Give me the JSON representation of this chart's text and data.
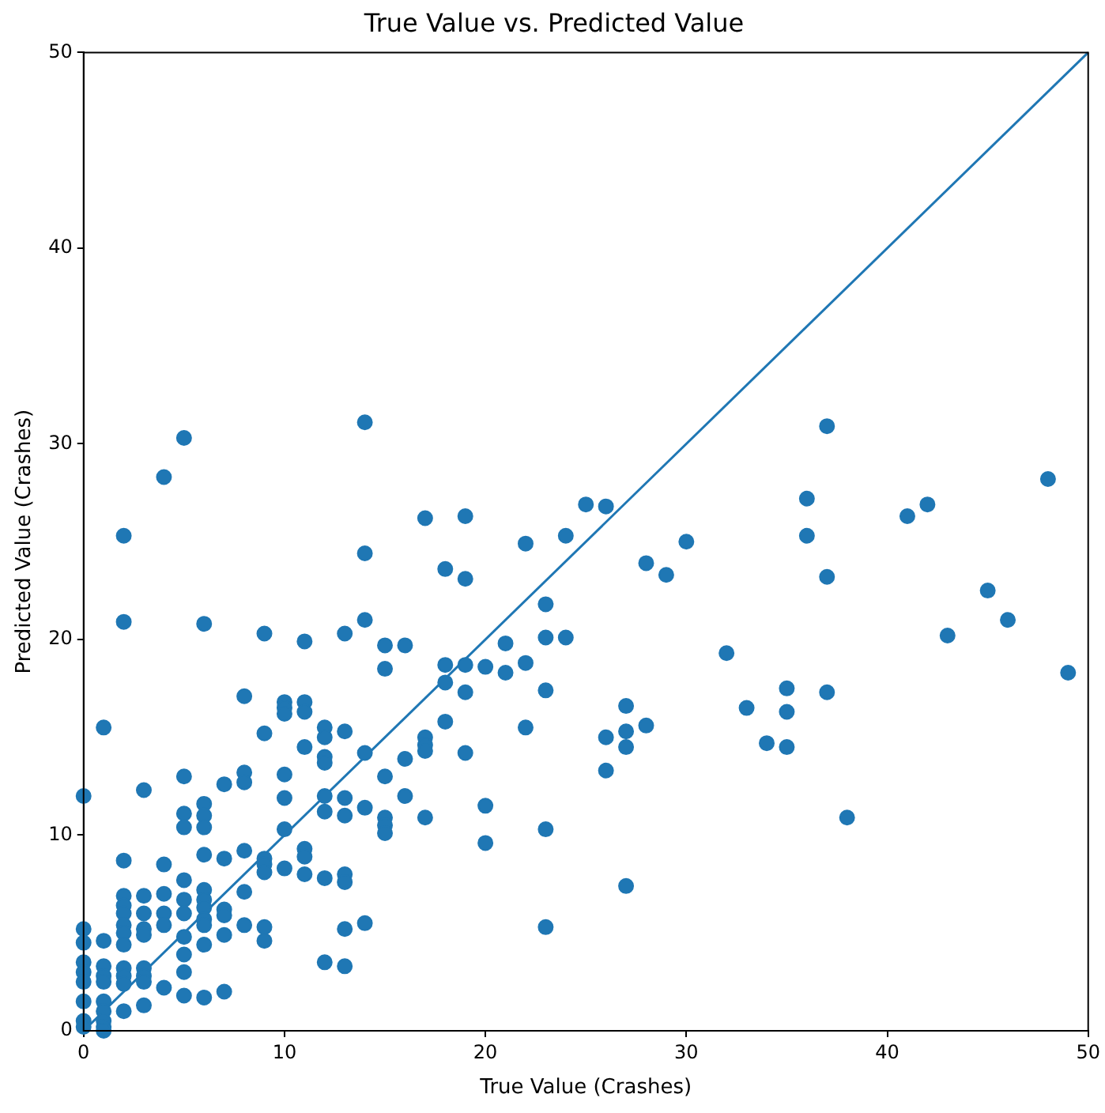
{
  "chart_data": {
    "type": "scatter",
    "title": "True Value vs. Predicted Value",
    "xlabel": "True Value (Crashes)",
    "ylabel": "Predicted Value (Crashes)",
    "xlim": [
      0,
      50
    ],
    "ylim": [
      0,
      50
    ],
    "xticks": [
      0,
      10,
      20,
      30,
      40,
      50
    ],
    "yticks": [
      0,
      10,
      20,
      30,
      40,
      50
    ],
    "grid": false,
    "legend": false,
    "marker": "circle",
    "series": [
      {
        "color": "#1f77b4",
        "x": [
          0,
          0,
          0,
          0,
          0,
          0,
          0,
          0,
          0,
          1,
          1,
          1,
          1,
          1,
          1,
          1,
          1,
          1,
          1,
          2,
          2,
          2,
          2,
          2,
          2,
          2,
          2,
          2,
          2,
          2,
          2,
          2,
          3,
          3,
          3,
          3,
          3,
          3,
          3,
          3,
          3,
          4,
          4,
          4,
          4,
          4,
          4,
          5,
          5,
          5,
          5,
          5,
          5,
          5,
          5,
          5,
          5,
          5,
          6,
          6,
          6,
          6,
          6,
          6,
          6,
          6,
          6,
          6,
          6,
          6,
          7,
          7,
          7,
          7,
          7,
          7,
          8,
          8,
          8,
          8,
          8,
          8,
          9,
          9,
          9,
          9,
          9,
          9,
          9,
          10,
          10,
          10,
          10,
          10,
          10,
          10,
          11,
          11,
          11,
          11,
          11,
          11,
          11,
          12,
          12,
          12,
          12,
          12,
          12,
          12,
          12,
          13,
          13,
          13,
          13,
          13,
          13,
          13,
          13,
          14,
          14,
          14,
          14,
          14,
          14,
          15,
          15,
          15,
          15,
          15,
          15,
          16,
          16,
          16,
          17,
          17,
          17,
          17,
          17,
          18,
          18,
          18,
          18,
          19,
          19,
          19,
          19,
          19,
          20,
          20,
          20,
          21,
          21,
          22,
          22,
          22,
          23,
          23,
          23,
          23,
          23,
          24,
          24,
          25,
          26,
          26,
          26,
          27,
          27,
          27,
          27,
          28,
          28,
          29,
          30,
          32,
          33,
          34,
          35,
          35,
          35,
          36,
          36,
          37,
          37,
          37,
          38,
          41,
          42,
          43,
          45,
          46,
          48,
          49
        ],
        "values": [
          12.0,
          5.2,
          4.5,
          3.5,
          3.0,
          2.5,
          1.5,
          0.5,
          0.2,
          15.5,
          4.6,
          3.3,
          2.8,
          2.5,
          1.5,
          1.0,
          0.5,
          0.2,
          0.0,
          25.3,
          20.9,
          8.7,
          6.9,
          6.4,
          6.0,
          5.4,
          5.0,
          4.4,
          3.2,
          2.8,
          2.4,
          1.0,
          12.3,
          6.9,
          6.0,
          5.2,
          4.9,
          3.2,
          2.8,
          2.5,
          1.3,
          28.3,
          8.5,
          7.0,
          6.0,
          5.4,
          2.2,
          30.3,
          13.0,
          11.1,
          10.4,
          7.7,
          6.7,
          6.0,
          4.8,
          3.9,
          3.0,
          1.8,
          20.8,
          11.6,
          11.0,
          10.4,
          9.0,
          7.2,
          6.7,
          6.3,
          5.7,
          5.4,
          4.4,
          1.7,
          12.6,
          8.8,
          6.2,
          5.9,
          4.9,
          2.0,
          17.1,
          13.2,
          12.7,
          9.2,
          7.1,
          5.4,
          20.3,
          15.2,
          8.8,
          8.5,
          8.1,
          5.3,
          4.6,
          16.8,
          16.5,
          16.2,
          13.1,
          11.9,
          10.3,
          8.3,
          19.9,
          16.8,
          16.3,
          14.5,
          9.3,
          8.9,
          8.0,
          15.5,
          15.0,
          14.0,
          13.7,
          12.0,
          11.2,
          7.8,
          3.5,
          20.3,
          15.3,
          11.9,
          11.0,
          8.0,
          7.6,
          5.2,
          3.3,
          31.1,
          24.4,
          21.0,
          14.2,
          11.4,
          5.5,
          19.7,
          18.5,
          13.0,
          10.9,
          10.5,
          10.1,
          19.7,
          13.9,
          12.0,
          26.2,
          15.0,
          14.6,
          14.3,
          10.9,
          23.6,
          18.7,
          17.8,
          15.8,
          26.3,
          23.1,
          18.7,
          17.3,
          14.2,
          18.6,
          11.5,
          9.6,
          19.8,
          18.3,
          24.9,
          18.8,
          15.5,
          21.8,
          20.1,
          17.4,
          10.3,
          5.3,
          25.3,
          20.1,
          26.9,
          26.8,
          15.0,
          13.3,
          16.6,
          15.3,
          14.5,
          7.4,
          23.9,
          15.6,
          23.3,
          25.0,
          19.3,
          16.5,
          14.7,
          17.5,
          16.3,
          14.5,
          27.2,
          25.3,
          30.9,
          23.2,
          17.3,
          10.9,
          26.3,
          26.9,
          20.2,
          22.5,
          21.0,
          28.2,
          18.3
        ]
      },
      {
        "type": "line",
        "color": "#1f77b4",
        "marker": "none",
        "line_style": "solid",
        "x": [
          0,
          50
        ],
        "values": [
          0,
          50
        ]
      }
    ]
  }
}
